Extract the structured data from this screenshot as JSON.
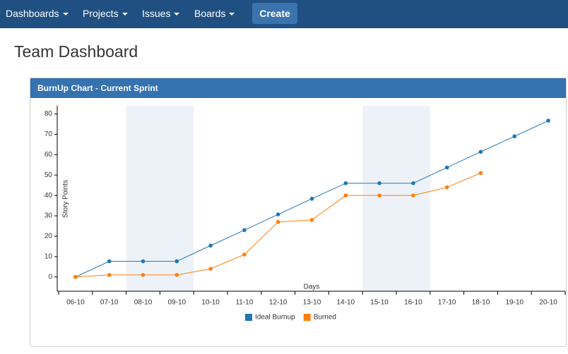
{
  "nav": [
    "Dashboards",
    "Projects",
    "Issues",
    "Boards"
  ],
  "create_button": "Create",
  "page_title": "Team Dashboard",
  "panel_title": "BurnUp Chart - Current Sprint",
  "chart_data": {
    "type": "line",
    "x_label": "Days",
    "y_label": "Story Points",
    "categories": [
      "06-10",
      "07-10",
      "08-10",
      "09-10",
      "10-10",
      "11-10",
      "12-10",
      "13-10",
      "14-10",
      "15-10",
      "16-10",
      "17-10",
      "18-10",
      "19-10",
      "20-10"
    ],
    "series": [
      {
        "name": "Ideal Burnup",
        "color": "#1f77b4",
        "values": [
          0,
          7.7,
          7.7,
          7.7,
          15.4,
          23,
          30.7,
          38.4,
          46,
          46,
          46,
          53.7,
          61.4,
          69,
          76.7
        ]
      },
      {
        "name": "Burned",
        "color": "#ff7f0e",
        "values": [
          0,
          1,
          1,
          1,
          4,
          11,
          27,
          28,
          40,
          40,
          40,
          44,
          51,
          null,
          null
        ]
      }
    ],
    "shaded": [
      {
        "from": "08-10",
        "to": "09-10"
      },
      {
        "from": "15-10",
        "to": "16-10"
      }
    ],
    "shade_color": "#edf2f9",
    "ylim": [
      -7,
      84
    ],
    "yticks": [
      0,
      10,
      20,
      30,
      40,
      50,
      60,
      70,
      80
    ],
    "legend": "bottom"
  }
}
